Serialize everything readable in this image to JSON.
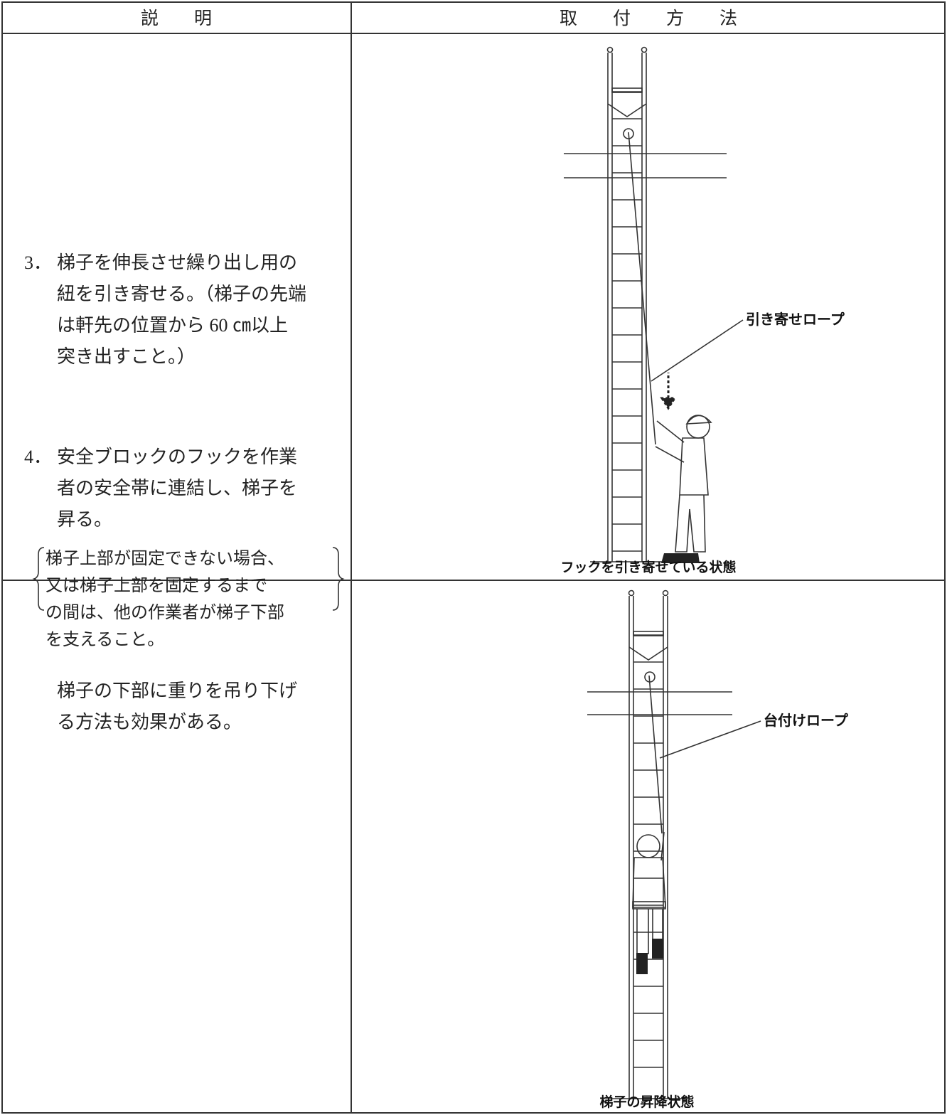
{
  "table": {
    "header": [
      "説　　明",
      "取　　付　　方　　法"
    ],
    "rows": [
      {
        "number": "3．",
        "lines": [
          "梯子を伸長させ繰り出し用の",
          "紐を引き寄せる。（梯子の先端",
          "は軒先の位置から 60 ㎝以上",
          "突き出すこと。）"
        ],
        "figure_label": "引き寄せロープ",
        "caption": "フックを引き寄せている状態"
      },
      {
        "number": "4．",
        "lines": [
          "安全ブロックのフックを作業",
          "者の安全帯に連結し、梯子を",
          "昇る。"
        ],
        "note": [
          "梯子上部が固定できない場合、",
          "又は梯子上部を固定するまで",
          "の間は、他の作業者が梯子下部",
          "を支えること。"
        ],
        "extra": [
          "梯子の下部に重りを吊り下げ",
          "る方法も効果がある。"
        ],
        "figure_label": "台付けロープ",
        "caption": "梯子の昇降状態"
      }
    ]
  }
}
